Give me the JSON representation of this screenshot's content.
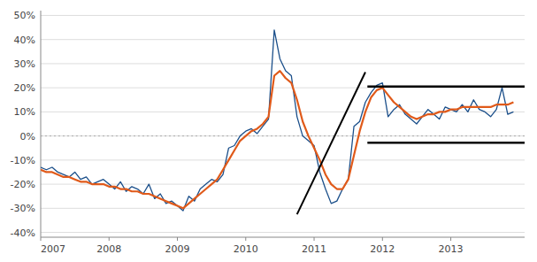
{
  "chart_data": {
    "type": "line",
    "x": [
      2007.0,
      2007.083,
      2007.167,
      2007.25,
      2007.333,
      2007.417,
      2007.5,
      2007.583,
      2007.667,
      2007.75,
      2007.833,
      2007.917,
      2008.0,
      2008.083,
      2008.167,
      2008.25,
      2008.333,
      2008.417,
      2008.5,
      2008.583,
      2008.667,
      2008.75,
      2008.833,
      2008.917,
      2009.0,
      2009.083,
      2009.167,
      2009.25,
      2009.333,
      2009.417,
      2009.5,
      2009.583,
      2009.667,
      2009.75,
      2009.833,
      2009.917,
      2010.0,
      2010.083,
      2010.167,
      2010.25,
      2010.333,
      2010.417,
      2010.5,
      2010.583,
      2010.667,
      2010.75,
      2010.833,
      2010.917,
      2011.0,
      2011.083,
      2011.167,
      2011.25,
      2011.333,
      2011.417,
      2011.5,
      2011.583,
      2011.667,
      2011.75,
      2011.833,
      2011.917,
      2012.0,
      2012.083,
      2012.167,
      2012.25,
      2012.333,
      2012.417,
      2012.5,
      2012.583,
      2012.667,
      2012.75,
      2012.833,
      2012.917,
      2013.0,
      2013.083,
      2013.167,
      2013.25,
      2013.333,
      2013.417,
      2013.5,
      2013.583,
      2013.667,
      2013.75,
      2013.833,
      2013.917
    ],
    "series": [
      {
        "color": "#1B4F8A",
        "values": [
          -0.13,
          -0.14,
          -0.13,
          -0.15,
          -0.16,
          -0.17,
          -0.15,
          -0.18,
          -0.17,
          -0.2,
          -0.19,
          -0.18,
          -0.2,
          -0.22,
          -0.19,
          -0.23,
          -0.21,
          -0.22,
          -0.24,
          -0.2,
          -0.26,
          -0.24,
          -0.28,
          -0.27,
          -0.29,
          -0.31,
          -0.25,
          -0.27,
          -0.22,
          -0.2,
          -0.18,
          -0.19,
          -0.16,
          -0.05,
          -0.04,
          0.0,
          0.02,
          0.03,
          0.01,
          0.04,
          0.07,
          0.44,
          0.32,
          0.27,
          0.25,
          0.08,
          0.0,
          -0.02,
          -0.04,
          -0.15,
          -0.22,
          -0.28,
          -0.27,
          -0.22,
          -0.18,
          0.04,
          0.06,
          0.14,
          0.18,
          0.21,
          0.22,
          0.08,
          0.11,
          0.13,
          0.09,
          0.07,
          0.05,
          0.08,
          0.11,
          0.09,
          0.07,
          0.12,
          0.11,
          0.1,
          0.13,
          0.1,
          0.15,
          0.11,
          0.1,
          0.08,
          0.11,
          0.2,
          0.09,
          0.1
        ]
      },
      {
        "color": "#E05A1A",
        "values": [
          -0.14,
          -0.15,
          -0.15,
          -0.16,
          -0.17,
          -0.17,
          -0.18,
          -0.19,
          -0.19,
          -0.2,
          -0.2,
          -0.2,
          -0.21,
          -0.21,
          -0.22,
          -0.22,
          -0.23,
          -0.23,
          -0.24,
          -0.24,
          -0.25,
          -0.26,
          -0.27,
          -0.28,
          -0.29,
          -0.3,
          -0.28,
          -0.26,
          -0.24,
          -0.22,
          -0.2,
          -0.18,
          -0.14,
          -0.1,
          -0.06,
          -0.02,
          0.0,
          0.02,
          0.03,
          0.05,
          0.08,
          0.25,
          0.27,
          0.24,
          0.22,
          0.15,
          0.06,
          0.0,
          -0.05,
          -0.1,
          -0.16,
          -0.2,
          -0.22,
          -0.22,
          -0.18,
          -0.08,
          0.02,
          0.1,
          0.16,
          0.19,
          0.2,
          0.17,
          0.14,
          0.12,
          0.1,
          0.08,
          0.07,
          0.08,
          0.09,
          0.09,
          0.1,
          0.1,
          0.11,
          0.11,
          0.12,
          0.12,
          0.12,
          0.12,
          0.12,
          0.12,
          0.13,
          0.13,
          0.13,
          0.14
        ]
      }
    ],
    "xlim": [
      2007.0,
      2014.08
    ],
    "ylim": [
      -0.42,
      0.52
    ],
    "xticks": [
      2007,
      2008,
      2009,
      2010,
      2011,
      2012,
      2013
    ],
    "yticks": [
      {
        "value": -0.4,
        "label": "-40%"
      },
      {
        "value": -0.3,
        "label": "-30%"
      },
      {
        "value": -0.2,
        "label": "-20%"
      },
      {
        "value": -0.1,
        "label": "-10%"
      },
      {
        "value": 0.0,
        "label": "0%"
      },
      {
        "value": 0.1,
        "label": "10%"
      },
      {
        "value": 0.2,
        "label": "20%"
      },
      {
        "value": 0.3,
        "label": "30%"
      },
      {
        "value": 0.4,
        "label": "40%"
      },
      {
        "value": 0.5,
        "label": "50%"
      }
    ],
    "grid": true,
    "reference_lines": [
      {
        "y": 0,
        "color": "#AAAAAA",
        "line_style": "dotted"
      }
    ],
    "segments": [
      {
        "x": [
          2010.75,
          2011.75
        ],
        "y": [
          -0.325,
          0.265
        ],
        "color": "black"
      }
    ],
    "hlines": [
      {
        "y": 0.205,
        "x_start": 2011.78,
        "x_end": 2014.08,
        "color": "black"
      },
      {
        "y": -0.028,
        "x_start": 2011.78,
        "x_end": 2014.08,
        "color": "black"
      }
    ]
  }
}
